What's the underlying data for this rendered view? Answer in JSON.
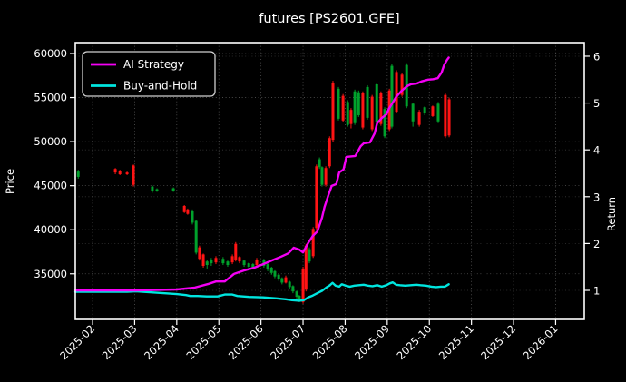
{
  "title": "futures [PS2601.GFE]",
  "colors": {
    "background": "#000000",
    "foreground": "#ffffff",
    "grid": "#9a9a9a",
    "candle_up": "#ff1414",
    "candle_down": "#00a12c",
    "ai_strategy": "#f400f4",
    "buy_and_hold": "#00e5df"
  },
  "legend": {
    "items": [
      {
        "label": "AI Strategy",
        "color": "#f400f4"
      },
      {
        "label": "Buy-and-Hold",
        "color": "#00e5df"
      }
    ]
  },
  "chart_data": {
    "type": "candlestick+line",
    "title": "futures [PS2601.GFE]",
    "grid": "dotted, both axes",
    "legend_position": "upper left",
    "x_axis": {
      "tick_labels": [
        "2025-02",
        "2025-03",
        "2025-04",
        "2025-05",
        "2025-06",
        "2025-07",
        "2025-08",
        "2025-09",
        "2025-10",
        "2025-11",
        "2025-12",
        "2026-01"
      ],
      "range_months": [
        -0.41,
        11.68
      ]
    },
    "left_axis": {
      "label": "Price",
      "ticks": [
        35000,
        40000,
        45000,
        50000,
        55000,
        60000
      ],
      "range": [
        29825,
        61236
      ]
    },
    "right_axis": {
      "label": "Return",
      "ticks": [
        1,
        2,
        3,
        4,
        5,
        6
      ],
      "range": [
        0.38,
        6.29
      ]
    },
    "candles_note": "each candle = [month_offset_from_2025-02, open, high, low, close, u=red d=green], price axis",
    "candles": [
      [
        -0.34,
        46600,
        46800,
        45800,
        46000,
        "d"
      ],
      [
        0.54,
        46900,
        47000,
        46300,
        46500,
        "u"
      ],
      [
        0.65,
        46700,
        46800,
        46200,
        46300,
        "u"
      ],
      [
        0.82,
        46500,
        46600,
        46200,
        46300,
        "u"
      ],
      [
        0.97,
        47300,
        47400,
        44900,
        45100,
        "u"
      ],
      [
        1.42,
        44900,
        45000,
        44200,
        44400,
        "d"
      ],
      [
        1.53,
        44600,
        44700,
        44300,
        44400,
        "d"
      ],
      [
        1.92,
        44700,
        44800,
        44300,
        44400,
        "d"
      ],
      [
        2.18,
        42700,
        42800,
        41900,
        42000,
        "u"
      ],
      [
        2.26,
        42300,
        42400,
        41700,
        41800,
        "u"
      ],
      [
        2.37,
        42100,
        42300,
        40600,
        40800,
        "d"
      ],
      [
        2.46,
        41000,
        41100,
        37200,
        37400,
        "d"
      ],
      [
        2.54,
        38000,
        38200,
        36500,
        36700,
        "u"
      ],
      [
        2.63,
        37200,
        37300,
        35700,
        35900,
        "u"
      ],
      [
        2.72,
        36000,
        36600,
        35600,
        36400,
        "d"
      ],
      [
        2.82,
        36200,
        36800,
        35900,
        36600,
        "d"
      ],
      [
        2.93,
        36300,
        37000,
        36100,
        36800,
        "u"
      ],
      [
        3.1,
        36700,
        36900,
        36000,
        36200,
        "d"
      ],
      [
        3.21,
        36400,
        36500,
        35800,
        36000,
        "d"
      ],
      [
        3.32,
        36300,
        37200,
        36100,
        37000,
        "u"
      ],
      [
        3.4,
        38400,
        38600,
        36400,
        36600,
        "u"
      ],
      [
        3.49,
        36900,
        37000,
        36200,
        36400,
        "u"
      ],
      [
        3.6,
        36500,
        36600,
        35800,
        36000,
        "d"
      ],
      [
        3.71,
        36200,
        36300,
        35600,
        35800,
        "d"
      ],
      [
        3.81,
        36100,
        36200,
        35500,
        35700,
        "d"
      ],
      [
        3.9,
        36000,
        36800,
        35800,
        36600,
        "u"
      ],
      [
        4.07,
        36600,
        36700,
        35700,
        35900,
        "d"
      ],
      [
        4.16,
        36100,
        36200,
        35300,
        35500,
        "d"
      ],
      [
        4.25,
        35700,
        35800,
        34900,
        35100,
        "d"
      ],
      [
        4.33,
        35300,
        35400,
        34500,
        34700,
        "d"
      ],
      [
        4.42,
        34900,
        35000,
        34200,
        34400,
        "d"
      ],
      [
        4.5,
        34500,
        34600,
        33800,
        34000,
        "d"
      ],
      [
        4.59,
        34000,
        34800,
        33900,
        34600,
        "u"
      ],
      [
        4.68,
        34100,
        34200,
        33300,
        33500,
        "d"
      ],
      [
        4.76,
        33600,
        33700,
        32800,
        33000,
        "d"
      ],
      [
        4.85,
        33000,
        33100,
        32200,
        32400,
        "d"
      ],
      [
        4.91,
        32500,
        32600,
        31800,
        31900,
        "d"
      ],
      [
        5.0,
        31800,
        35800,
        31600,
        35600,
        "u"
      ],
      [
        5.07,
        33200,
        38400,
        33000,
        38200,
        "u"
      ],
      [
        5.15,
        37800,
        38000,
        36200,
        36400,
        "d"
      ],
      [
        5.24,
        37000,
        40300,
        36800,
        40100,
        "u"
      ],
      [
        5.32,
        40200,
        47400,
        40000,
        47200,
        "u"
      ],
      [
        5.39,
        48000,
        48200,
        46900,
        47100,
        "d"
      ],
      [
        5.45,
        47100,
        47200,
        44900,
        45100,
        "d"
      ],
      [
        5.54,
        45100,
        47200,
        44900,
        47000,
        "u"
      ],
      [
        5.63,
        47200,
        50600,
        47000,
        50400,
        "u"
      ],
      [
        5.71,
        50200,
        56900,
        50000,
        56700,
        "u"
      ],
      [
        5.84,
        56000,
        56200,
        52400,
        52600,
        "d"
      ],
      [
        5.95,
        52400,
        55400,
        52200,
        55200,
        "u"
      ],
      [
        6.06,
        54500,
        54700,
        51700,
        51900,
        "d"
      ],
      [
        6.14,
        52000,
        53800,
        51500,
        53600,
        "u"
      ],
      [
        6.23,
        55700,
        55900,
        51900,
        52100,
        "d"
      ],
      [
        6.32,
        55600,
        55800,
        52800,
        53000,
        "d"
      ],
      [
        6.42,
        51600,
        55700,
        51400,
        55500,
        "u"
      ],
      [
        6.53,
        56200,
        56400,
        52500,
        52700,
        "d"
      ],
      [
        6.64,
        51400,
        55300,
        51200,
        55100,
        "u"
      ],
      [
        6.75,
        56500,
        56700,
        52000,
        52200,
        "d"
      ],
      [
        6.85,
        52000,
        55700,
        51800,
        55500,
        "u"
      ],
      [
        6.94,
        53700,
        53900,
        50400,
        50600,
        "d"
      ],
      [
        7.05,
        51400,
        56000,
        51200,
        55800,
        "u"
      ],
      [
        7.11,
        58600,
        58800,
        51500,
        51700,
        "d"
      ],
      [
        7.22,
        53400,
        58100,
        53200,
        57900,
        "u"
      ],
      [
        7.35,
        55300,
        57800,
        55100,
        57600,
        "u"
      ],
      [
        7.46,
        58700,
        58900,
        53800,
        54000,
        "d"
      ],
      [
        7.61,
        54300,
        54400,
        51700,
        52300,
        "d"
      ],
      [
        7.76,
        51900,
        53600,
        51700,
        53400,
        "u"
      ],
      [
        7.89,
        53900,
        54000,
        53000,
        53200,
        "d"
      ],
      [
        8.08,
        52900,
        54100,
        52800,
        54000,
        "u"
      ],
      [
        8.21,
        54300,
        54500,
        52100,
        52300,
        "d"
      ],
      [
        8.38,
        50600,
        55500,
        50400,
        55300,
        "u"
      ],
      [
        8.47,
        54800,
        55000,
        50500,
        50700,
        "u"
      ]
    ],
    "series": [
      {
        "name": "AI Strategy",
        "color": "#f400f4",
        "axis": "return",
        "points": [
          [
            -0.41,
            1.0
          ],
          [
            0.5,
            1.0
          ],
          [
            1.03,
            1.0
          ],
          [
            1.5,
            1.01
          ],
          [
            2.0,
            1.02
          ],
          [
            2.43,
            1.06
          ],
          [
            2.76,
            1.14
          ],
          [
            2.93,
            1.19
          ],
          [
            3.14,
            1.19
          ],
          [
            3.36,
            1.35
          ],
          [
            3.62,
            1.43
          ],
          [
            3.83,
            1.48
          ],
          [
            4.05,
            1.56
          ],
          [
            4.26,
            1.64
          ],
          [
            4.48,
            1.72
          ],
          [
            4.65,
            1.79
          ],
          [
            4.78,
            1.91
          ],
          [
            4.91,
            1.87
          ],
          [
            5.0,
            1.81
          ],
          [
            5.12,
            2.01
          ],
          [
            5.23,
            2.16
          ],
          [
            5.34,
            2.26
          ],
          [
            5.45,
            2.55
          ],
          [
            5.51,
            2.78
          ],
          [
            5.6,
            3.03
          ],
          [
            5.68,
            3.23
          ],
          [
            5.79,
            3.27
          ],
          [
            5.86,
            3.52
          ],
          [
            5.96,
            3.58
          ],
          [
            6.03,
            3.85
          ],
          [
            6.24,
            3.87
          ],
          [
            6.37,
            4.08
          ],
          [
            6.44,
            4.14
          ],
          [
            6.59,
            4.16
          ],
          [
            6.7,
            4.35
          ],
          [
            6.76,
            4.57
          ],
          [
            6.87,
            4.68
          ],
          [
            6.98,
            4.76
          ],
          [
            7.04,
            4.88
          ],
          [
            7.13,
            5.01
          ],
          [
            7.21,
            5.13
          ],
          [
            7.34,
            5.26
          ],
          [
            7.47,
            5.36
          ],
          [
            7.56,
            5.4
          ],
          [
            7.71,
            5.42
          ],
          [
            7.81,
            5.46
          ],
          [
            7.97,
            5.5
          ],
          [
            8.09,
            5.51
          ],
          [
            8.2,
            5.53
          ],
          [
            8.29,
            5.65
          ],
          [
            8.35,
            5.81
          ],
          [
            8.42,
            5.92
          ],
          [
            8.46,
            5.97
          ]
        ]
      },
      {
        "name": "Buy-and-Hold",
        "color": "#00e5df",
        "axis": "return",
        "points": [
          [
            -0.41,
            0.97
          ],
          [
            0.82,
            0.97
          ],
          [
            1.03,
            0.98
          ],
          [
            1.36,
            0.96
          ],
          [
            1.68,
            0.94
          ],
          [
            2.0,
            0.92
          ],
          [
            2.22,
            0.9
          ],
          [
            2.32,
            0.88
          ],
          [
            2.5,
            0.88
          ],
          [
            2.71,
            0.87
          ],
          [
            2.97,
            0.87
          ],
          [
            3.14,
            0.91
          ],
          [
            3.32,
            0.91
          ],
          [
            3.44,
            0.88
          ],
          [
            3.72,
            0.86
          ],
          [
            4.05,
            0.85
          ],
          [
            4.37,
            0.83
          ],
          [
            4.59,
            0.81
          ],
          [
            4.74,
            0.79
          ],
          [
            4.91,
            0.78
          ],
          [
            5.02,
            0.79
          ],
          [
            5.12,
            0.85
          ],
          [
            5.23,
            0.89
          ],
          [
            5.34,
            0.94
          ],
          [
            5.45,
            0.99
          ],
          [
            5.55,
            1.06
          ],
          [
            5.64,
            1.11
          ],
          [
            5.7,
            1.16
          ],
          [
            5.77,
            1.1
          ],
          [
            5.86,
            1.08
          ],
          [
            5.92,
            1.13
          ],
          [
            6.01,
            1.1
          ],
          [
            6.11,
            1.08
          ],
          [
            6.22,
            1.1
          ],
          [
            6.33,
            1.11
          ],
          [
            6.44,
            1.12
          ],
          [
            6.54,
            1.1
          ],
          [
            6.65,
            1.09
          ],
          [
            6.76,
            1.11
          ],
          [
            6.87,
            1.08
          ],
          [
            6.98,
            1.11
          ],
          [
            7.06,
            1.15
          ],
          [
            7.13,
            1.17
          ],
          [
            7.21,
            1.12
          ],
          [
            7.3,
            1.11
          ],
          [
            7.43,
            1.1
          ],
          [
            7.56,
            1.11
          ],
          [
            7.69,
            1.12
          ],
          [
            7.79,
            1.11
          ],
          [
            7.92,
            1.1
          ],
          [
            8.05,
            1.08
          ],
          [
            8.16,
            1.07
          ],
          [
            8.27,
            1.08
          ],
          [
            8.37,
            1.08
          ],
          [
            8.46,
            1.13
          ]
        ]
      }
    ]
  }
}
